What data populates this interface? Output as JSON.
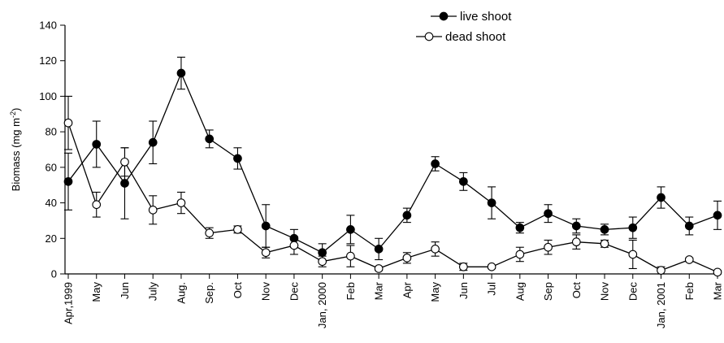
{
  "chart_data": {
    "type": "line",
    "title": "",
    "xlabel": "",
    "ylabel": "Biomass (mg m",
    "ylabel_sup": "-2",
    "ylabel_close": ")",
    "ylim": [
      0,
      140
    ],
    "yticks": [
      0,
      20,
      40,
      60,
      80,
      100,
      120,
      140
    ],
    "grid": false,
    "legend_position": "top-right",
    "categories": [
      "Apr,1999",
      "May",
      "Jun",
      "July",
      "Aug.",
      "Sep.",
      "Oct",
      "Nov",
      "Dec",
      "Jan, 2000",
      "Feb",
      "Mar",
      "Apr",
      "May",
      "Jun",
      "Jul",
      "Aug",
      "Sep",
      "Oct",
      "Nov",
      "Dec",
      "Jan, 2001",
      "Feb",
      "Mar"
    ],
    "series": [
      {
        "name": "live shoot",
        "marker": "filled-circle",
        "color": "#000000",
        "values": [
          52,
          73,
          51,
          74,
          113,
          76,
          65,
          27,
          20,
          12,
          25,
          14,
          33,
          62,
          52,
          40,
          26,
          34,
          27,
          25,
          26,
          43,
          27,
          33
        ],
        "error": [
          16,
          13,
          20,
          12,
          9,
          5,
          6,
          12,
          5,
          5,
          8,
          6,
          4,
          4,
          5,
          9,
          3,
          5,
          4,
          3,
          6,
          6,
          5,
          8
        ]
      },
      {
        "name": "dead shoot",
        "marker": "open-circle",
        "color": "#000000",
        "values": [
          85,
          39,
          63,
          36,
          40,
          23,
          25,
          12,
          16,
          7,
          10,
          3,
          9,
          14,
          4,
          4,
          11,
          15,
          18,
          17,
          11,
          2,
          8,
          1
        ],
        "error": [
          15,
          7,
          8,
          8,
          6,
          3,
          2,
          3,
          5,
          3,
          6,
          1,
          3,
          4,
          2,
          1,
          4,
          4,
          4,
          2,
          8,
          2,
          1,
          1
        ]
      }
    ]
  }
}
